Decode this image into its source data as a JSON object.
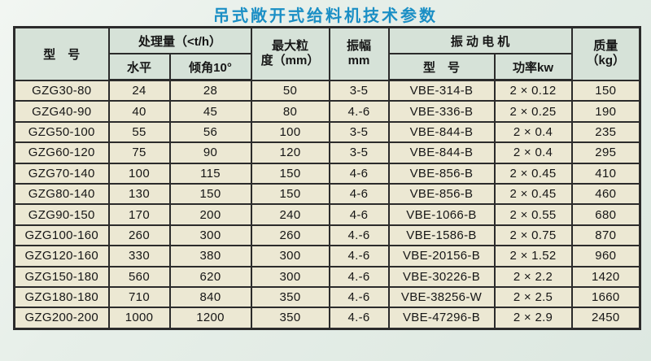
{
  "page": {
    "title": "吊式敞开式给料机技术参数"
  },
  "colors": {
    "title": "#1b8fc5",
    "header_bg": "#d6e2d8",
    "row_bg": "#ece8d3",
    "border": "#2b2b2b",
    "page_bg": "#e5eee8"
  },
  "table": {
    "headers": {
      "model": "型　号",
      "capacity_group": "处理量（<t/h）",
      "capacity_sub_horizontal": "水平",
      "capacity_sub_incline": "倾角10°",
      "max_size_line1": "最大粒",
      "max_size_line2": "度（mm）",
      "amplitude_line1": "振幅",
      "amplitude_line2": "mm",
      "motor_group": "振 动 电 机",
      "motor_sub_model": "型　号",
      "motor_sub_power": "功率kw",
      "mass_line1": "质量",
      "mass_line2": "（kg）"
    },
    "rows": [
      [
        "GZG30-80",
        "24",
        "28",
        "50",
        "3-5",
        "VBE-314-B",
        "2 × 0.12",
        "150"
      ],
      [
        "GZG40-90",
        "40",
        "45",
        "80",
        "4.-6",
        "VBE-336-B",
        "2 × 0.25",
        "190"
      ],
      [
        "GZG50-100",
        "55",
        "56",
        "100",
        "3-5",
        "VBE-844-B",
        "2 × 0.4",
        "235"
      ],
      [
        "GZG60-120",
        "75",
        "90",
        "120",
        "3-5",
        "VBE-844-B",
        "2 × 0.4",
        "295"
      ],
      [
        "GZG70-140",
        "100",
        "115",
        "150",
        "4-6",
        "VBE-856-B",
        "2 × 0.45",
        "410"
      ],
      [
        "GZG80-140",
        "130",
        "150",
        "150",
        "4-6",
        "VBE-856-B",
        "2 × 0.45",
        "460"
      ],
      [
        "GZG90-150",
        "170",
        "200",
        "240",
        "4-6",
        "VBE-1066-B",
        "2 × 0.55",
        "680"
      ],
      [
        "GZG100-160",
        "260",
        "300",
        "260",
        "4.-6",
        "VBE-1586-B",
        "2 × 0.75",
        "870"
      ],
      [
        "GZG120-160",
        "330",
        "380",
        "300",
        "4.-6",
        "VBE-20156-B",
        "2 × 1.52",
        "960"
      ],
      [
        "GZG150-180",
        "560",
        "620",
        "300",
        "4.-6",
        "VBE-30226-B",
        "2 × 2.2",
        "1420"
      ],
      [
        "GZG180-180",
        "710",
        "840",
        "350",
        "4.-6",
        "VBE-38256-W",
        "2 × 2.5",
        "1660"
      ],
      [
        "GZG200-200",
        "1000",
        "1200",
        "350",
        "4.-6",
        "VBE-47296-B",
        "2 × 2.9",
        "2450"
      ]
    ]
  }
}
